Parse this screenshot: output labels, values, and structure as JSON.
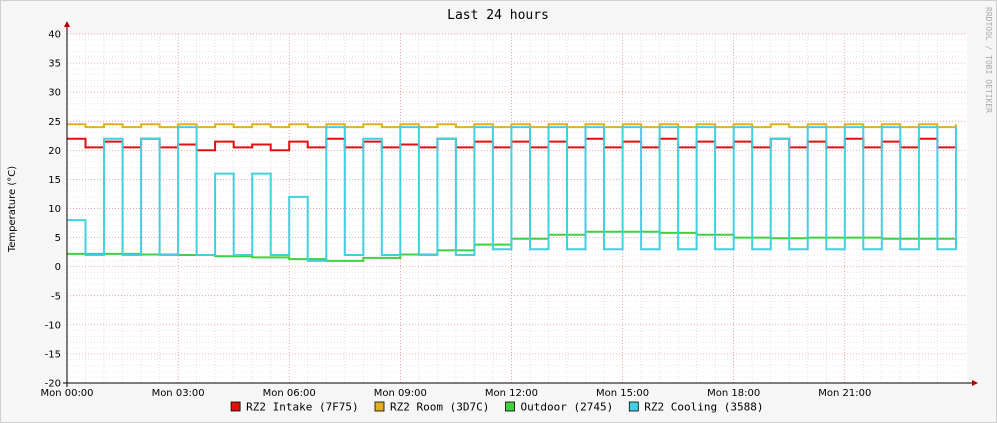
{
  "chart_data": {
    "type": "line",
    "title": "Last 24 hours",
    "ylabel": "Temperature (°C)",
    "xlabel": "",
    "watermark": "RRDTOOL / TOBI OETIKER",
    "ylim": [
      -20,
      40
    ],
    "y_ticks": [
      40,
      35,
      30,
      25,
      20,
      15,
      10,
      5,
      0,
      -5,
      -10,
      -15,
      -20
    ],
    "x_range_hours": [
      0,
      24.3
    ],
    "x_ticks": [
      {
        "hour": 0,
        "label": "Mon 00:00"
      },
      {
        "hour": 3,
        "label": "Mon 03:00"
      },
      {
        "hour": 6,
        "label": "Mon 06:00"
      },
      {
        "hour": 9,
        "label": "Mon 09:00"
      },
      {
        "hour": 12,
        "label": "Mon 12:00"
      },
      {
        "hour": 15,
        "label": "Mon 15:00"
      },
      {
        "hour": 18,
        "label": "Mon 18:00"
      },
      {
        "hour": 21,
        "label": "Mon 21:00"
      }
    ],
    "grid": true,
    "legend_position": "bottom",
    "series": [
      {
        "name": "RZ2 Intake (7F75)",
        "color": "#e01010",
        "x": [
          0,
          0.5,
          1,
          1.5,
          2,
          2.5,
          3,
          3.5,
          4,
          4.5,
          5,
          5.5,
          6,
          6.5,
          7,
          7.5,
          8,
          8.5,
          9,
          9.5,
          10,
          10.5,
          11,
          11.5,
          12,
          12.5,
          13,
          13.5,
          14,
          14.5,
          15,
          15.5,
          16,
          16.5,
          17,
          17.5,
          18,
          18.5,
          19,
          19.5,
          20,
          20.5,
          21,
          21.5,
          22,
          22.5,
          23,
          23.5,
          24
        ],
        "values": [
          22,
          20.5,
          21.5,
          20.5,
          22,
          20.5,
          21,
          20,
          21.5,
          20.5,
          21,
          20,
          21.5,
          20.5,
          22,
          20.5,
          21.5,
          20.5,
          21,
          20.5,
          22,
          20.5,
          21.5,
          20.5,
          21.5,
          20.5,
          21.5,
          20.5,
          22,
          20.5,
          21.5,
          20.5,
          22,
          20.5,
          21.5,
          20.5,
          21.5,
          20.5,
          22,
          20.5,
          21.5,
          20.5,
          22,
          20.5,
          21.5,
          20.5,
          22,
          20.5,
          21
        ]
      },
      {
        "name": "RZ2 Room (3D7C)",
        "color": "#e0b020",
        "x": [
          0,
          0.5,
          1,
          1.5,
          2,
          2.5,
          3,
          3.5,
          4,
          4.5,
          5,
          5.5,
          6,
          6.5,
          7,
          7.5,
          8,
          8.5,
          9,
          9.5,
          10,
          10.5,
          11,
          11.5,
          12,
          12.5,
          13,
          13.5,
          14,
          14.5,
          15,
          15.5,
          16,
          16.5,
          17,
          17.5,
          18,
          18.5,
          19,
          19.5,
          20,
          20.5,
          21,
          21.5,
          22,
          22.5,
          23,
          23.5,
          24
        ],
        "values": [
          24.5,
          24,
          24.5,
          24,
          24.5,
          24,
          24.5,
          24,
          24.5,
          24,
          24.5,
          24,
          24.5,
          24,
          24.5,
          24,
          24.5,
          24,
          24.5,
          24,
          24.5,
          24,
          24.5,
          24,
          24.5,
          24,
          24.5,
          24,
          24.5,
          24,
          24.5,
          24,
          24.5,
          24,
          24.5,
          24,
          24.5,
          24,
          24.5,
          24,
          24.5,
          24,
          24.5,
          24,
          24.5,
          24,
          24.5,
          24,
          24.5
        ]
      },
      {
        "name": "Outdoor (2745)",
        "color": "#40d040",
        "x": [
          0,
          1,
          2,
          3,
          4,
          5,
          6,
          7,
          8,
          9,
          10,
          11,
          12,
          13,
          14,
          15,
          16,
          17,
          18,
          19,
          20,
          21,
          22,
          23,
          24
        ],
        "values": [
          2.2,
          2.2,
          2.1,
          2.0,
          1.8,
          1.6,
          1.3,
          1.0,
          1.5,
          2.1,
          2.8,
          3.8,
          4.8,
          5.5,
          6.0,
          6.0,
          5.8,
          5.5,
          5.0,
          4.9,
          5.0,
          5.0,
          4.8,
          4.8,
          3.8
        ]
      },
      {
        "name": "RZ2 Cooling (3588)",
        "color": "#40d0e0",
        "x": [
          0,
          0.5,
          1,
          1.5,
          2,
          2.5,
          3,
          3.5,
          4,
          4.5,
          5,
          5.5,
          6,
          6.5,
          7,
          7.5,
          8,
          8.5,
          9,
          9.5,
          10,
          10.5,
          11,
          11.5,
          12,
          12.5,
          13,
          13.5,
          14,
          14.5,
          15,
          15.5,
          16,
          16.5,
          17,
          17.5,
          18,
          18.5,
          19,
          19.5,
          20,
          20.5,
          21,
          21.5,
          22,
          22.5,
          23,
          23.5,
          24
        ],
        "values": [
          8,
          2,
          22,
          2,
          22,
          2,
          24,
          2,
          16,
          2,
          16,
          2,
          12,
          1,
          24,
          2,
          22,
          2,
          24,
          2,
          22,
          2,
          24,
          3,
          24,
          3,
          24,
          3,
          24,
          3,
          24,
          3,
          24,
          3,
          24,
          3,
          24,
          3,
          22,
          3,
          24,
          3,
          24,
          3,
          24,
          3,
          24,
          3,
          24
        ]
      }
    ]
  }
}
